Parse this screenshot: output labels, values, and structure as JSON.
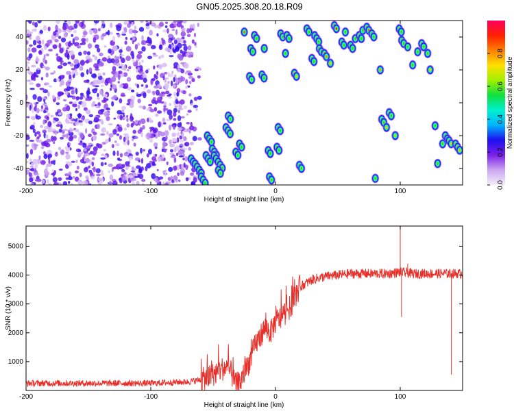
{
  "title": "GN05.2025.308.20.18.R09",
  "chart_data": [
    {
      "type": "heatmap",
      "xlabel": "Height of straight line (km)",
      "ylabel": "Frequency (Hz)",
      "xlim": [
        -200,
        150
      ],
      "ylim": [
        -50,
        50
      ],
      "xticks": [
        -200,
        -100,
        0,
        100
      ],
      "yticks": [
        -40,
        -20,
        0,
        20,
        40
      ],
      "colorbar": {
        "label": "Normalized spectral amplitude",
        "range": [
          0,
          1
        ],
        "ticks": [
          "0.0",
          "0.2",
          "0.4",
          "0.6",
          "0.8"
        ],
        "colors": [
          "#f4f0fb",
          "#cba6f0",
          "#7a1fe8",
          "#1d10f0",
          "#00b4ff",
          "#00f0d0",
          "#10e040",
          "#a0f000",
          "#ffe000",
          "#ff8000",
          "#ff2000",
          "#ff0060"
        ]
      },
      "noise_region": {
        "x": [
          -200,
          -60
        ]
      },
      "blobs": [
        [
          -66,
          -36,
          0.5,
          6
        ],
        [
          -62,
          -40,
          0.55,
          8
        ],
        [
          -58,
          -47,
          0.55,
          6
        ],
        [
          -54,
          -34,
          0.55,
          6
        ],
        [
          -53,
          -22,
          0.55,
          6
        ],
        [
          -49,
          -30,
          0.55,
          6
        ],
        [
          -46,
          -36,
          0.55,
          10
        ],
        [
          -45,
          -42,
          0.55,
          4
        ],
        [
          -38,
          -17,
          0.55,
          6
        ],
        [
          -37,
          -9,
          0.55,
          4
        ],
        [
          -31,
          -31,
          0.55,
          4
        ],
        [
          -28,
          -26,
          0.55,
          4
        ],
        [
          -25,
          43,
          0.85,
          2
        ],
        [
          -20,
          15,
          0.55,
          4
        ],
        [
          -19,
          32,
          0.55,
          4
        ],
        [
          -16,
          40,
          0.55,
          4
        ],
        [
          -10,
          16,
          0.55,
          4
        ],
        [
          -9,
          33,
          0.55,
          2
        ],
        [
          -5,
          -30,
          0.55,
          4
        ],
        [
          -4,
          -46,
          0.55,
          4
        ],
        [
          2,
          -28,
          0.55,
          4
        ],
        [
          3,
          -16,
          0.55,
          4
        ],
        [
          5,
          41,
          0.55,
          4
        ],
        [
          8,
          30,
          0.55,
          2
        ],
        [
          10,
          40,
          0.55,
          4
        ],
        [
          16,
          17,
          0.75,
          4
        ],
        [
          20,
          -39,
          0.55,
          4
        ],
        [
          26,
          44,
          0.55,
          4
        ],
        [
          30,
          26,
          0.55,
          4
        ],
        [
          33,
          39,
          0.55,
          6
        ],
        [
          36,
          32,
          0.55,
          4
        ],
        [
          40,
          29,
          0.8,
          4
        ],
        [
          44,
          24,
          0.75,
          2
        ],
        [
          48,
          46,
          0.9,
          4
        ],
        [
          54,
          36,
          0.55,
          4
        ],
        [
          56,
          43,
          0.55,
          2
        ],
        [
          61,
          34,
          0.55,
          4
        ],
        [
          64,
          39,
          0.55,
          2
        ],
        [
          68,
          40,
          0.55,
          4
        ],
        [
          70,
          44,
          0.55,
          2
        ],
        [
          74,
          45,
          0.85,
          4
        ],
        [
          78,
          41,
          0.55,
          4
        ],
        [
          80,
          -46,
          0.55,
          2
        ],
        [
          84,
          20,
          0.8,
          2
        ],
        [
          86,
          -11,
          0.55,
          4
        ],
        [
          89,
          -15,
          0.75,
          2
        ],
        [
          92,
          -7,
          0.55,
          4
        ],
        [
          96,
          -20,
          0.65,
          2
        ],
        [
          100,
          44,
          0.55,
          4
        ],
        [
          102,
          37,
          0.55,
          4
        ],
        [
          106,
          34,
          0.55,
          2
        ],
        [
          110,
          23,
          0.55,
          2
        ],
        [
          114,
          31,
          0.55,
          2
        ],
        [
          118,
          35,
          0.55,
          4
        ],
        [
          122,
          30,
          0.55,
          2
        ],
        [
          124,
          20,
          0.75,
          2
        ],
        [
          128,
          -14,
          0.55,
          2
        ],
        [
          130,
          -37,
          0.55,
          2
        ],
        [
          134,
          -25,
          0.55,
          2
        ],
        [
          137,
          -21,
          0.55,
          4
        ],
        [
          140,
          -24,
          0.7,
          4
        ],
        [
          146,
          -27,
          0.75,
          6
        ]
      ]
    },
    {
      "type": "line",
      "xlabel": "Height of straight line (km)",
      "ylabel": "SNR (10 * v/v)",
      "xlim": [
        -200,
        150
      ],
      "ylim": [
        0,
        5700
      ],
      "xticks": [
        -200,
        -100,
        0,
        100
      ],
      "yticks": [
        1000,
        2000,
        3000,
        4000,
        5000
      ],
      "color": "#e8302a",
      "envelope": {
        "x": [
          -200,
          -150,
          -100,
          -70,
          -62,
          -55,
          -50,
          -45,
          -40,
          -36,
          -32,
          -28,
          -24,
          -20,
          -16,
          -12,
          -8,
          -4,
          0,
          4,
          8,
          12,
          16,
          20,
          30,
          40,
          50,
          60,
          70,
          80,
          90,
          100,
          110,
          120,
          130,
          140,
          150
        ],
        "y": [
          250,
          250,
          250,
          300,
          350,
          420,
          550,
          700,
          800,
          650,
          200,
          300,
          700,
          1100,
          1600,
          1900,
          2200,
          2000,
          2400,
          2500,
          2700,
          2900,
          3300,
          3600,
          3850,
          3950,
          4000,
          4050,
          4050,
          4050,
          4050,
          4100,
          4050,
          4050,
          4050,
          4050,
          4050
        ]
      },
      "spikes": [
        [
          100,
          5700
        ],
        [
          101,
          2550
        ],
        [
          106,
          4400
        ],
        [
          141,
          550
        ]
      ]
    }
  ]
}
